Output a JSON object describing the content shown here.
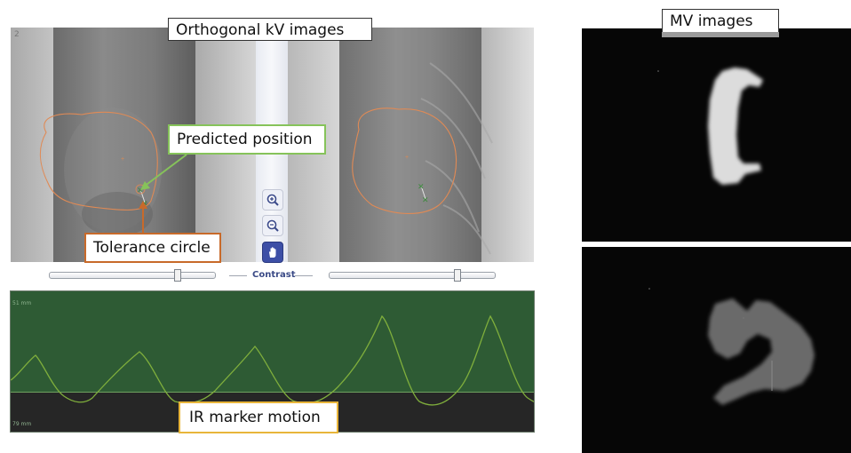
{
  "kv_panel": {
    "title": "Orthogonal kV images",
    "corner_index": "2",
    "callouts": {
      "predicted": "Predicted position",
      "tolerance": "Tolerance circle"
    },
    "contrast_label": "Contrast",
    "contrast_left_level": 0.78,
    "contrast_right_level": 0.78
  },
  "tools": {
    "zoom_in": "zoom-in-icon",
    "zoom_out": "zoom-out-icon",
    "pan": "hand-icon"
  },
  "motion_panel": {
    "label": "IR marker motion",
    "top_axis": "51 mm",
    "bottom_axis": "79 mm",
    "trace_color": "#7fae3c",
    "background_color": "#2e5b34",
    "lower_band_color": "#2a2a2a"
  },
  "mv_panel": {
    "title": "MV images"
  },
  "colors": {
    "predicted_callout_border": "#86c35a",
    "tolerance_callout_border": "#c86a2a",
    "motion_callout_border": "#e8b53a",
    "contour": "#e08a55"
  }
}
